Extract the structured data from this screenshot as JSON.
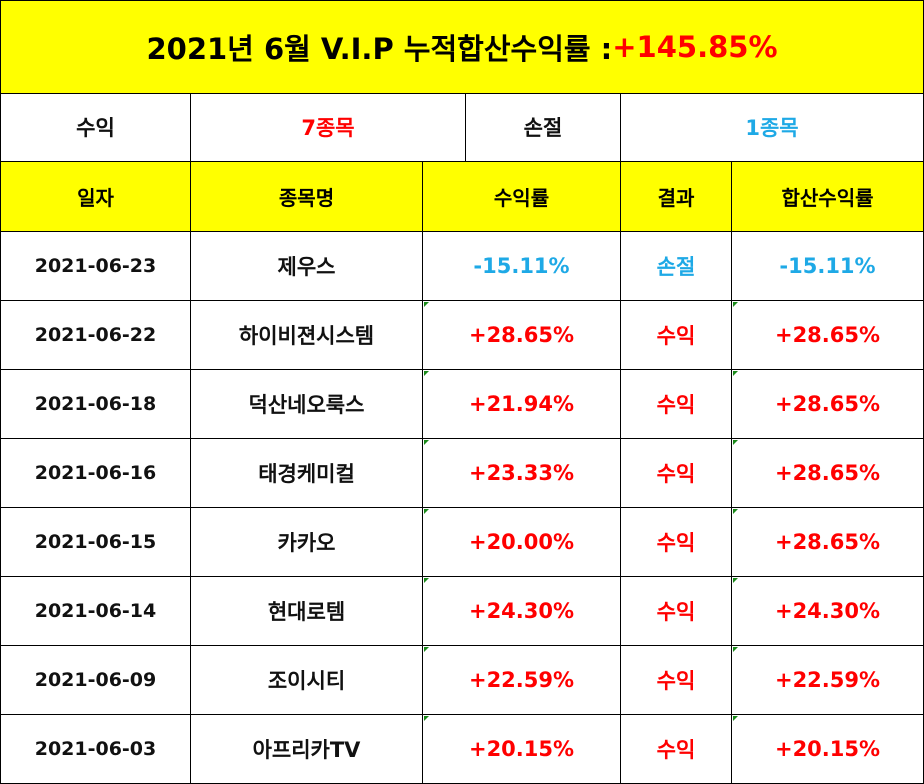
{
  "title": {
    "prefix": "2021년 6월 V.I.P 누적합산수익률 : ",
    "total": "+145.85%"
  },
  "summary": {
    "profit_label": "수익",
    "profit_count": "7종목",
    "loss_label": "손절",
    "loss_count": "1종목"
  },
  "headers": {
    "date": "일자",
    "name": "종목명",
    "return": "수익률",
    "result": "결과",
    "cumulative": "합산수익률"
  },
  "rows": [
    {
      "date": "2021-06-23",
      "name": "제우스",
      "return": "-15.11%",
      "result": "손절",
      "cumulative": "-15.11%",
      "color": "blue"
    },
    {
      "date": "2021-06-22",
      "name": "하이비젼시스템",
      "return": "+28.65%",
      "result": "수익",
      "cumulative": "+28.65%",
      "color": "red"
    },
    {
      "date": "2021-06-18",
      "name": "덕산네오룩스",
      "return": "+21.94%",
      "result": "수익",
      "cumulative": "+28.65%",
      "color": "red"
    },
    {
      "date": "2021-06-16",
      "name": "태경케미컬",
      "return": "+23.33%",
      "result": "수익",
      "cumulative": "+28.65%",
      "color": "red"
    },
    {
      "date": "2021-06-15",
      "name": "카카오",
      "return": "+20.00%",
      "result": "수익",
      "cumulative": "+28.65%",
      "color": "red"
    },
    {
      "date": "2021-06-14",
      "name": "현대로템",
      "return": "+24.30%",
      "result": "수익",
      "cumulative": "+24.30%",
      "color": "red"
    },
    {
      "date": "2021-06-09",
      "name": "조이시티",
      "return": "+22.59%",
      "result": "수익",
      "cumulative": "+22.59%",
      "color": "red"
    },
    {
      "date": "2021-06-03",
      "name": "아프리카TV",
      "return": "+20.15%",
      "result": "수익",
      "cumulative": "+20.15%",
      "color": "red"
    }
  ],
  "colors": {
    "header_bg": "#ffff00",
    "profit": "#ff0000",
    "loss": "#1ea9e6"
  }
}
